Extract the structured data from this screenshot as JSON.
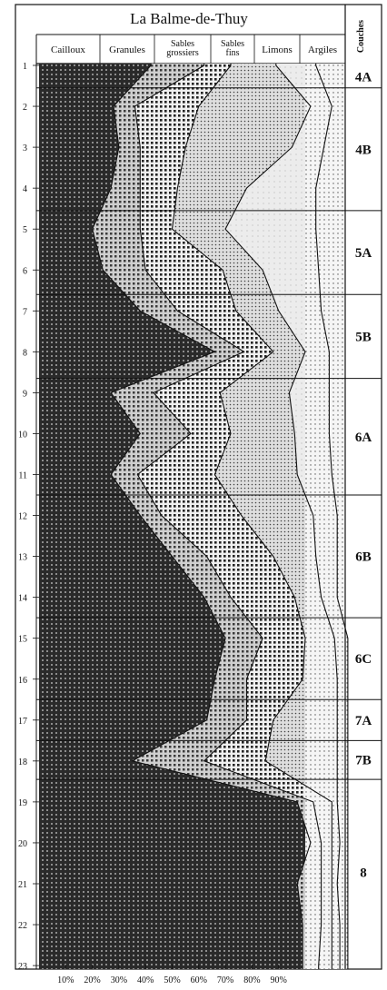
{
  "chart_data": {
    "type": "area",
    "title": "La Balme-de-Thuy",
    "layer_header": "Couches",
    "fractions": [
      {
        "name": "Cailloux",
        "color": "#2a2a2a"
      },
      {
        "name": "Granules",
        "color": "#8a8a8a"
      },
      {
        "name": "Sables grossiers",
        "color": "#6e6e6e"
      },
      {
        "name": "Sables fins",
        "color": "#c4c4c4"
      },
      {
        "name": "Limons",
        "color": "#e4e4e4"
      },
      {
        "name": "Argiles",
        "color": "#ececec"
      }
    ],
    "x_ticks": [
      "10%",
      "20%",
      "30%",
      "40%",
      "50%",
      "60%",
      "70%",
      "80%",
      "90%"
    ],
    "xlim": [
      0,
      100
    ],
    "y_ticks": [
      "1",
      "2",
      "3",
      "4",
      "5",
      "6",
      "7",
      "8",
      "9",
      "10",
      "11",
      "12",
      "13",
      "14",
      "15",
      "16",
      "17",
      "18",
      "19",
      "20",
      "21",
      "22",
      "23"
    ],
    "ylim": [
      1,
      23
    ],
    "samples": [
      1,
      2,
      3,
      4,
      5,
      6,
      7,
      8,
      9,
      10,
      11,
      12,
      13,
      14,
      15,
      16,
      17,
      18,
      19,
      20,
      21,
      22,
      23
    ],
    "cumulative": [
      {
        "name": "Cailloux",
        "values": [
          42,
          28,
          30,
          27,
          20,
          24,
          38,
          66,
          27,
          38,
          27,
          38,
          50,
          62,
          70,
          66,
          63,
          35,
          97,
          102,
          97,
          99,
          99
        ]
      },
      {
        "name": "Granules",
        "values": [
          62,
          36,
          38,
          38,
          38,
          40,
          52,
          77,
          43,
          57,
          37,
          46,
          63,
          72,
          84,
          78,
          78,
          62,
          103,
          106,
          106,
          106,
          105
        ]
      },
      {
        "name": "Sables grossiers",
        "values": [
          72,
          60,
          55,
          52,
          50,
          69,
          74,
          88,
          68,
          72,
          66,
          76,
          88,
          96,
          100,
          99,
          88,
          85,
          110,
          110,
          110,
          110,
          110
        ]
      },
      {
        "name": "Sables fins",
        "values": [
          89,
          102,
          95,
          78,
          70,
          84,
          90,
          100,
          94,
          96,
          97,
          103,
          104,
          106,
          111,
          112,
          112,
          112,
          112,
          113,
          112,
          113,
          113
        ]
      },
      {
        "name": "Limons",
        "values": [
          104,
          110,
          107,
          104,
          104,
          105,
          106,
          109,
          109,
          109,
          110,
          112,
          112,
          112,
          116,
          116,
          116,
          116,
          116,
          116,
          116,
          116,
          116
        ]
      },
      {
        "name": "Argiles",
        "values": [
          100,
          100,
          100,
          100,
          100,
          100,
          100,
          100,
          100,
          100,
          100,
          100,
          100,
          100,
          100,
          100,
          100,
          100,
          100,
          100,
          100,
          100,
          100
        ]
      }
    ],
    "layers": [
      {
        "label": "4A",
        "top": 1.0,
        "bottom": 1.55
      },
      {
        "label": "4B",
        "top": 1.55,
        "bottom": 4.55
      },
      {
        "label": "5A",
        "top": 4.55,
        "bottom": 6.6
      },
      {
        "label": "5B",
        "top": 6.6,
        "bottom": 8.65
      },
      {
        "label": "6A",
        "top": 8.65,
        "bottom": 11.5
      },
      {
        "label": "6B",
        "top": 11.5,
        "bottom": 14.5
      },
      {
        "label": "6C",
        "top": 14.5,
        "bottom": 16.5
      },
      {
        "label": "7A",
        "top": 16.5,
        "bottom": 17.5
      },
      {
        "label": "7B",
        "top": 17.5,
        "bottom": 18.45
      },
      {
        "label": "8",
        "top": 18.45,
        "bottom": 23.0
      }
    ]
  }
}
